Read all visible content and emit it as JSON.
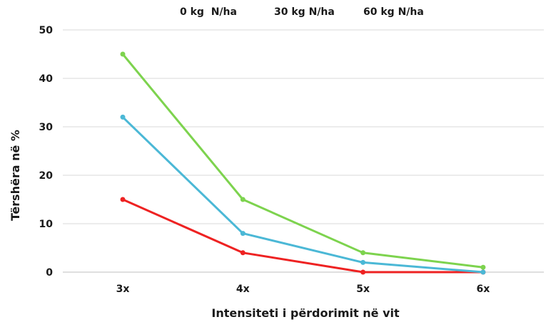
{
  "chart_data": {
    "type": "line",
    "categories": [
      "3x",
      "4x",
      "5x",
      "6x"
    ],
    "series": [
      {
        "name": "0 kg  N/ha",
        "color": "#ee2222",
        "values": [
          15,
          4,
          0,
          0
        ]
      },
      {
        "name": "30 kg N/ha",
        "color": "#4bb8d6",
        "values": [
          32,
          8,
          2,
          0
        ]
      },
      {
        "name": "60 kg N/ha",
        "color": "#7dd34e",
        "values": [
          45,
          15,
          4,
          1
        ]
      }
    ],
    "title": "",
    "xlabel": "Intensiteti  i përdorimit në vit",
    "ylabel": "Tërshëra në %",
    "ylim": [
      0,
      50
    ],
    "yticks": [
      "0",
      "10",
      "20",
      "30",
      "40",
      "50"
    ],
    "grid": true,
    "legend": "top"
  }
}
